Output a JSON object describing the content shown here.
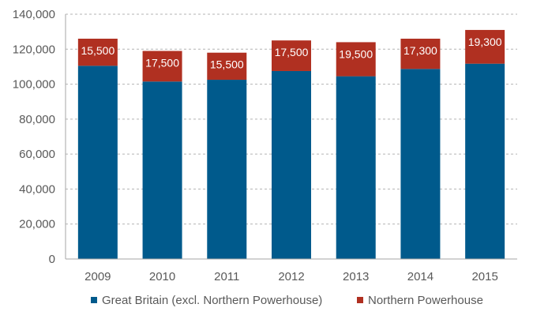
{
  "chart_data": {
    "type": "bar",
    "stacked": true,
    "categories": [
      "2009",
      "2010",
      "2011",
      "2012",
      "2013",
      "2014",
      "2015"
    ],
    "series": [
      {
        "name": "Great Britain (excl. Northern Powerhouse)",
        "color": "#005a8c",
        "values": [
          110500,
          101500,
          102500,
          107500,
          104500,
          108700,
          111700
        ]
      },
      {
        "name": "Northern Powerhouse",
        "color": "#b03021",
        "values": [
          15500,
          17500,
          15500,
          17500,
          19500,
          17300,
          19300
        ],
        "data_labels": [
          "15,500",
          "17,500",
          "15,500",
          "17,500",
          "19,500",
          "17,300",
          "19,300"
        ]
      }
    ],
    "y_ticks": [
      "0",
      "20,000",
      "40,000",
      "60,000",
      "80,000",
      "100,000",
      "120,000",
      "140,000"
    ],
    "ylim": [
      0,
      140000
    ],
    "grid": true,
    "grid_style": "dashed",
    "legend_position": "bottom"
  }
}
